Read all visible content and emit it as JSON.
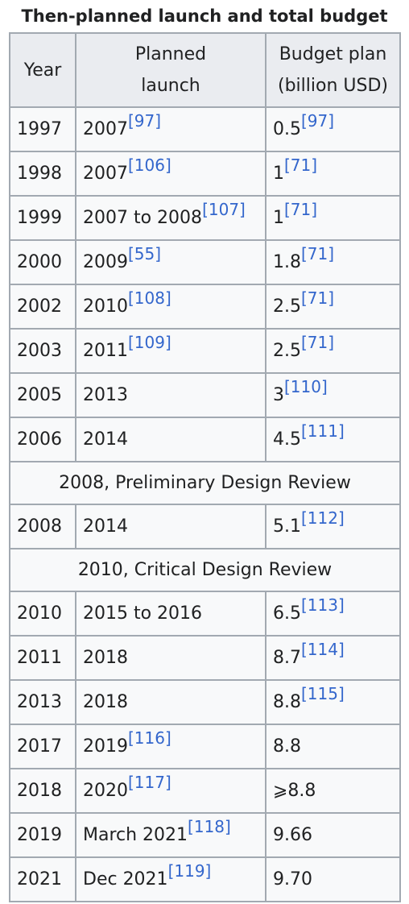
{
  "caption": "Then-planned launch and total budget",
  "columns": {
    "year": "Year",
    "launch": [
      "Planned",
      "launch"
    ],
    "budget": [
      "Budget plan",
      "(billion USD)"
    ]
  },
  "rows": [
    {
      "kind": "data",
      "year": "1997",
      "launch": "2007",
      "launch_ref": "[97]",
      "budget": "0.5",
      "budget_ref": "[97]"
    },
    {
      "kind": "data",
      "year": "1998",
      "launch": "2007",
      "launch_ref": "[106]",
      "budget": "1",
      "budget_ref": "[71]"
    },
    {
      "kind": "data",
      "year": "1999",
      "launch": "2007 to 2008",
      "launch_ref": "[107]",
      "budget": "1",
      "budget_ref": "[71]"
    },
    {
      "kind": "data",
      "year": "2000",
      "launch": "2009",
      "launch_ref": "[55]",
      "budget": "1.8",
      "budget_ref": "[71]"
    },
    {
      "kind": "data",
      "year": "2002",
      "launch": "2010",
      "launch_ref": "[108]",
      "budget": "2.5",
      "budget_ref": "[71]"
    },
    {
      "kind": "data",
      "year": "2003",
      "launch": "2011",
      "launch_ref": "[109]",
      "budget": "2.5",
      "budget_ref": "[71]"
    },
    {
      "kind": "data",
      "year": "2005",
      "launch": "2013",
      "launch_ref": "",
      "budget": "3",
      "budget_ref": "[110]"
    },
    {
      "kind": "data",
      "year": "2006",
      "launch": "2014",
      "launch_ref": "",
      "budget": "4.5",
      "budget_ref": "[111]"
    },
    {
      "kind": "phase",
      "label": "2008, Preliminary Design Review"
    },
    {
      "kind": "data",
      "year": "2008",
      "launch": "2014",
      "launch_ref": "",
      "budget": "5.1",
      "budget_ref": "[112]"
    },
    {
      "kind": "phase",
      "label": "2010, Critical Design Review"
    },
    {
      "kind": "data",
      "year": "2010",
      "launch": "2015 to 2016",
      "launch_ref": "",
      "budget": "6.5",
      "budget_ref": "[113]"
    },
    {
      "kind": "data",
      "year": "2011",
      "launch": "2018",
      "launch_ref": "",
      "budget": "8.7",
      "budget_ref": "[114]"
    },
    {
      "kind": "data",
      "year": "2013",
      "launch": "2018",
      "launch_ref": "",
      "budget": "8.8",
      "budget_ref": "[115]"
    },
    {
      "kind": "data",
      "year": "2017",
      "launch": "2019",
      "launch_ref": "[116]",
      "budget": "8.8",
      "budget_ref": ""
    },
    {
      "kind": "data",
      "year": "2018",
      "launch": "2020",
      "launch_ref": "[117]",
      "budget": "⩾8.8",
      "budget_ref": ""
    },
    {
      "kind": "data",
      "year": "2019",
      "launch": "March 2021",
      "launch_ref": "[118]",
      "budget": "9.66",
      "budget_ref": ""
    },
    {
      "kind": "data",
      "year": "2021",
      "launch": "Dec 2021",
      "launch_ref": "[119]",
      "budget": "9.70",
      "budget_ref": ""
    }
  ]
}
